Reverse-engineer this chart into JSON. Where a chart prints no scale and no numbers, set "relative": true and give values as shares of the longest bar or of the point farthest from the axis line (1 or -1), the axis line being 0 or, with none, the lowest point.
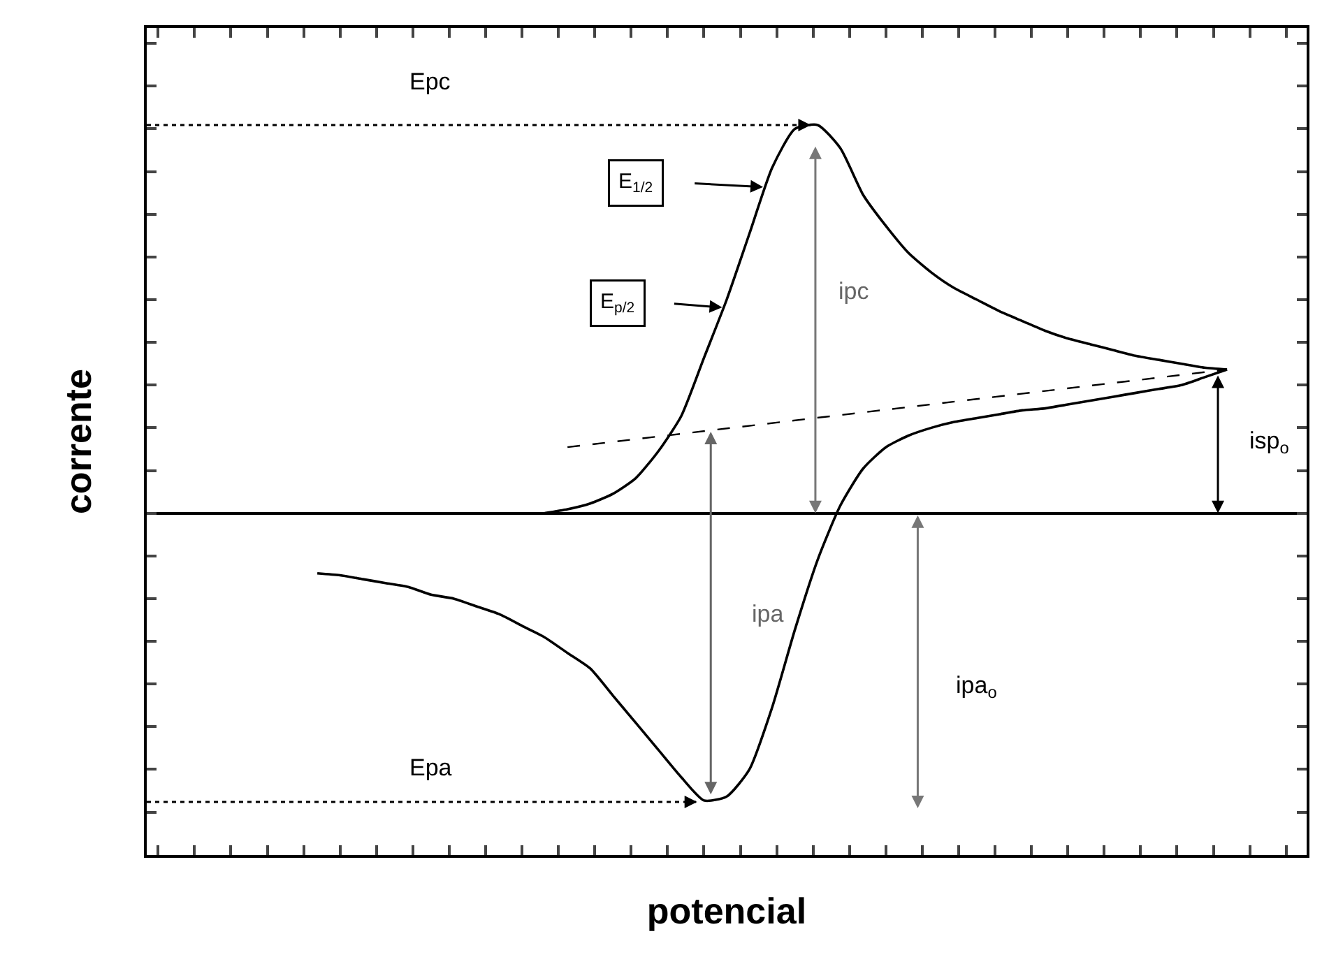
{
  "chart_data": {
    "type": "line",
    "relative": true,
    "xlabel": "potencial",
    "ylabel": "corrente",
    "tick_labels": false,
    "grid": false,
    "legend": false,
    "marker": "none",
    "categories": [
      null,
      null,
      null,
      null,
      null,
      null,
      null,
      null,
      null,
      null,
      null,
      null,
      null,
      null,
      null,
      null,
      null,
      null,
      null,
      null,
      null,
      null,
      null,
      null,
      null,
      null,
      null,
      null,
      null,
      null,
      null,
      null,
      null,
      null,
      null,
      null,
      null,
      null,
      null,
      null,
      null,
      null,
      null,
      null,
      null,
      null,
      null,
      null,
      null,
      null,
      null
    ],
    "series": [
      {
        "color": "#000000",
        "values": [
          null,
          null,
          null,
          null,
          null,
          null,
          null,
          null,
          null,
          null,
          null,
          null,
          null,
          null,
          null,
          null,
          null,
          0,
          0.01,
          0.025,
          0.05,
          0.09,
          0.16,
          0.25,
          0.4,
          0.55,
          0.72,
          0.89,
          0.99,
          1,
          0.94,
          0.82,
          0.74,
          0.67,
          0.62,
          0.58,
          0.55,
          0.52,
          0.495,
          0.47,
          0.45,
          0.435,
          0.42,
          0.405,
          0.395,
          0.385,
          0.375,
          0.37,
          null,
          null,
          null
        ]
      },
      {
        "color": "#000000",
        "values": [
          null,
          null,
          null,
          null,
          null,
          null,
          null,
          -0.155,
          -0.16,
          -0.17,
          -0.18,
          -0.19,
          -0.21,
          -0.22,
          -0.24,
          -0.26,
          -0.29,
          -0.32,
          -0.36,
          -0.4,
          -0.47,
          -0.54,
          -0.61,
          -0.68,
          -0.74,
          -0.73,
          -0.66,
          -0.5,
          -0.3,
          -0.12,
          0.02,
          0.115,
          0.17,
          0.2,
          0.22,
          0.235,
          0.245,
          0.255,
          0.265,
          0.27,
          0.28,
          0.29,
          0.3,
          0.31,
          0.32,
          0.33,
          0.35,
          0.37,
          null,
          null,
          null
        ]
      },
      {
        "color": "#000000",
        "line_style": "dashed",
        "values": [
          null,
          null,
          null,
          null,
          null,
          null,
          null,
          null,
          null,
          null,
          null,
          null,
          null,
          null,
          null,
          null,
          null,
          null,
          0.17,
          null,
          null,
          null,
          null,
          null,
          null,
          null,
          null,
          null,
          null,
          null,
          null,
          null,
          null,
          null,
          null,
          null,
          null,
          null,
          null,
          null,
          null,
          null,
          null,
          null,
          null,
          null,
          null,
          0.37,
          null,
          null,
          null
        ]
      }
    ],
    "ref_lines": [
      {
        "axis": "y",
        "value": 1,
        "label": "Epc",
        "line_style": "dotted",
        "color": "#000000"
      },
      {
        "axis": "y",
        "value": -0.744,
        "label": "Epa",
        "line_style": "dotted",
        "color": "#000000"
      }
    ],
    "annotations": [
      "E$_{1/2}$",
      "E$_{p/2}$",
      "ipc",
      "ipa",
      "ipa$_{o}$",
      "isp$_{o}$"
    ]
  }
}
